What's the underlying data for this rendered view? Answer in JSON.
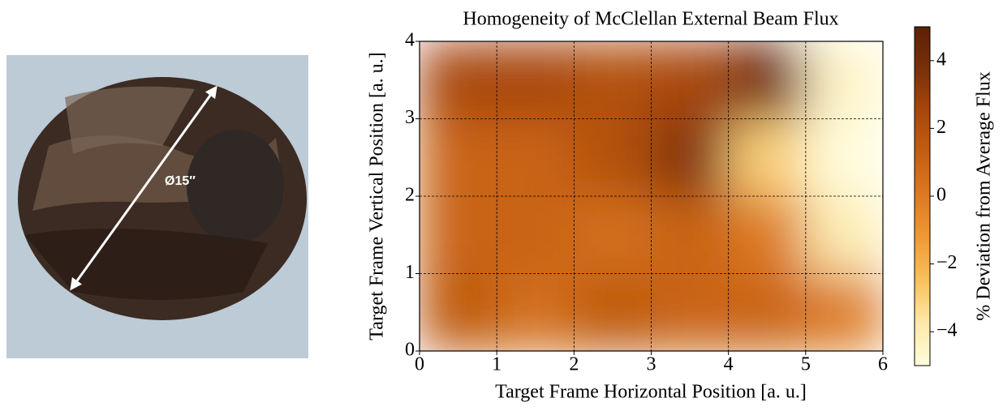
{
  "photo": {
    "label": "Ø15″"
  },
  "chart_data": {
    "type": "heatmap",
    "title": "Homogeneity of McClellan External Beam Flux",
    "x_label": "Target Frame Horizontal Position [a. u.]",
    "y_label": "Target Frame Vertical Position [a. u.]",
    "xlim": [
      0,
      6
    ],
    "ylim": [
      0,
      4
    ],
    "xticks": [
      0,
      1,
      2,
      3,
      4,
      5,
      6
    ],
    "yticks": [
      0,
      1,
      2,
      3,
      4
    ],
    "grid": true,
    "z": [
      [
        1.5,
        0.5,
        1.5,
        1,
        1,
        0
      ],
      [
        1,
        1,
        0.5,
        1,
        0,
        -4
      ],
      [
        1,
        1,
        2,
        3.5,
        -3,
        -5
      ],
      [
        2.5,
        2.5,
        2,
        2.5,
        4,
        -4.5
      ]
    ],
    "colormap": [
      "#fffcdc",
      "#fde9a8",
      "#f9c15c",
      "#f09a35",
      "#dd7a22",
      "#c45f13",
      "#a8470b",
      "#7a300a",
      "#5c2006"
    ],
    "colorbar": {
      "label": "% Deviation from Average Flux",
      "zlim": [
        -5,
        5
      ],
      "zticks": [
        {
          "value": -4,
          "label": "−4"
        },
        {
          "value": -2,
          "label": "−2"
        },
        0,
        2,
        4
      ]
    }
  }
}
